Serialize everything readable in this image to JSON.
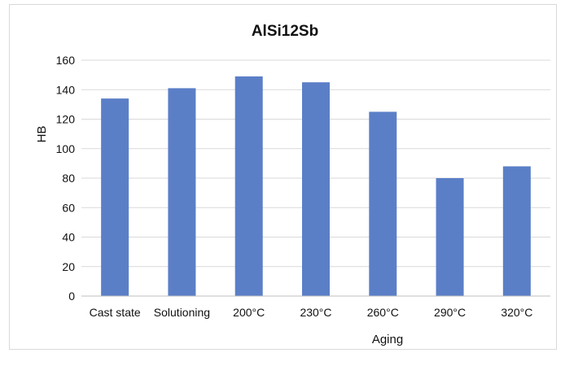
{
  "chart_data": {
    "type": "bar",
    "title": "AlSi12Sb",
    "xlabel": "Aging",
    "ylabel": "HB",
    "categories": [
      "Cast state",
      "Solutioning",
      "200°C",
      "230°C",
      "260°C",
      "290°C",
      "320°C"
    ],
    "values": [
      134,
      141,
      149,
      145,
      125,
      80,
      88
    ],
    "ylim": [
      0,
      160
    ],
    "yticks": [
      0,
      20,
      40,
      60,
      80,
      100,
      120,
      140,
      160
    ],
    "grid": true,
    "legend": "none",
    "bar_color": "#5b7fc7",
    "grid_color": "#d9d9d9",
    "axis_color": "#bfbfbf"
  }
}
